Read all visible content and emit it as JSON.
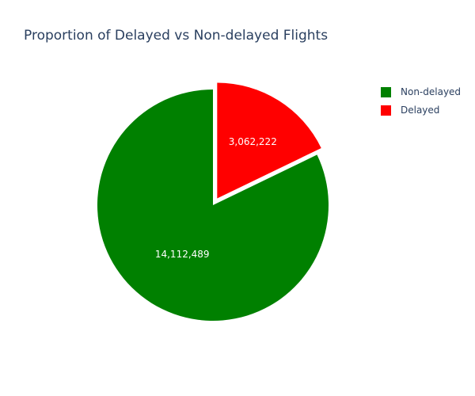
{
  "chart_data": {
    "type": "pie",
    "title": "Proportion of Delayed vs Non-delayed Flights",
    "slices": [
      {
        "name": "Non-delayed",
        "value": 14112489,
        "label": "14,112,489",
        "color": "#008000",
        "pulled": false
      },
      {
        "name": "Delayed",
        "value": 3062222,
        "label": "3,062,222",
        "color": "#ff0000",
        "pulled": true
      }
    ],
    "direction": "counterclockwise",
    "start_angle_deg": 90,
    "legend": {
      "placement": "top-right",
      "items": [
        {
          "label": "Non-delayed",
          "color": "#008000"
        },
        {
          "label": "Delayed",
          "color": "#ff0000"
        }
      ]
    }
  }
}
